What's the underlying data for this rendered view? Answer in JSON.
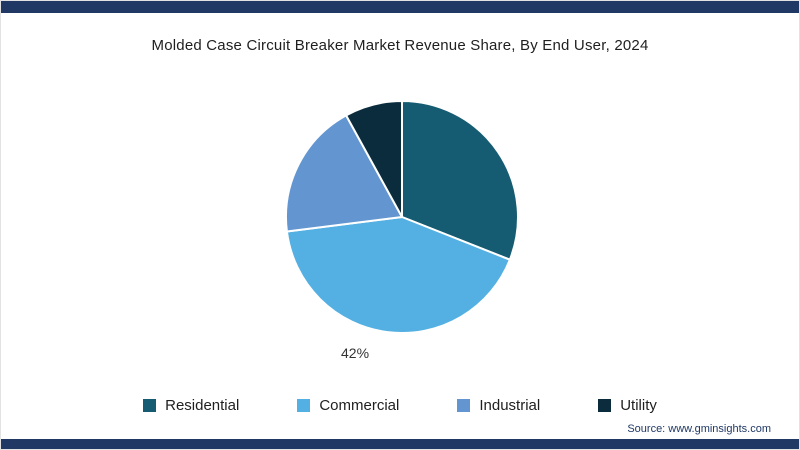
{
  "page": {
    "source": "Source: www.gminsights.com",
    "accent_bar_color": "#1f3864",
    "background_color": "#ffffff"
  },
  "chart_data": {
    "type": "pie",
    "title": "Molded Case Circuit Breaker Market Revenue Share, By End User, 2024",
    "slices": [
      {
        "label": "Residential",
        "value": 31,
        "color": "#155c72"
      },
      {
        "label": "Commercial",
        "value": 42,
        "color": "#54b0e2"
      },
      {
        "label": "Industrial",
        "value": 19,
        "color": "#6396d0"
      },
      {
        "label": "Utility",
        "value": 8,
        "color": "#0a2c3d"
      }
    ],
    "start_angle_deg": -90,
    "direction": "clockwise",
    "data_label": {
      "text": "42%",
      "slice": "Commercial",
      "position": "below-left"
    },
    "legend_position": "bottom",
    "slice_separator_color": "#ffffff"
  }
}
